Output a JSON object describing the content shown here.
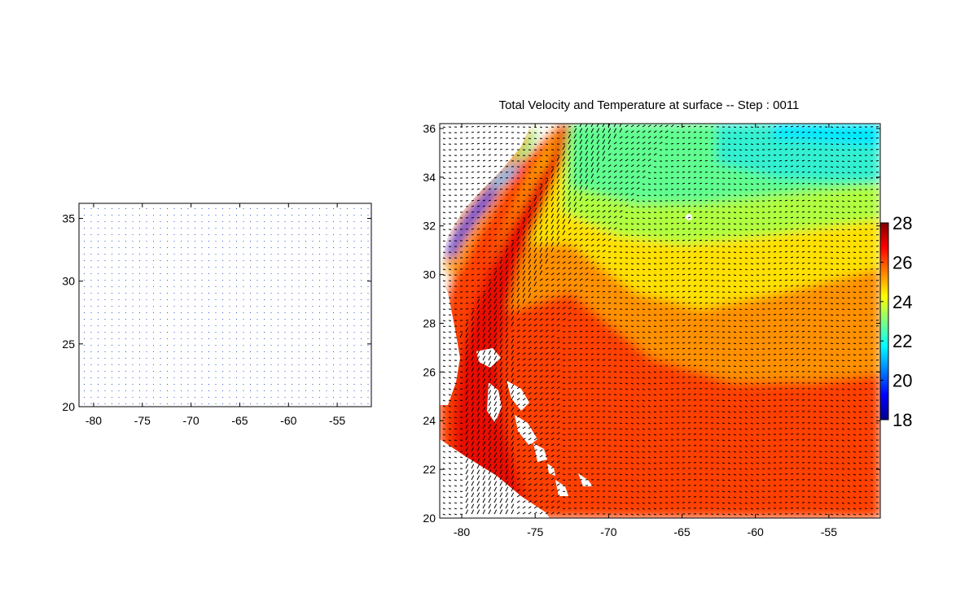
{
  "chart_data": [
    {
      "type": "scatter",
      "title": "",
      "xlabel": "",
      "ylabel": "",
      "xlim": [
        -81.5,
        -51.5
      ],
      "ylim": [
        20,
        36.2
      ],
      "xticks": [
        "-80",
        "-75",
        "-70",
        "-65",
        "-60",
        "-55"
      ],
      "yticks": [
        "20",
        "25",
        "30",
        "35"
      ],
      "grid": false,
      "point_color": "#3355cc",
      "description_marks": "regular grid of tiny dots"
    },
    {
      "type": "heatmap",
      "title": "Total Velocity and Temperature at surface -- Step : 0011",
      "xlabel": "",
      "ylabel": "",
      "xlim": [
        -81.5,
        -51.5
      ],
      "ylim": [
        20,
        36.2
      ],
      "xticks": [
        "-80",
        "-75",
        "-70",
        "-65",
        "-60",
        "-55"
      ],
      "yticks": [
        "20",
        "22",
        "24",
        "26",
        "28",
        "30",
        "32",
        "34",
        "36"
      ],
      "colorbar": {
        "min": 18,
        "max": 28,
        "ticks": [
          "18",
          "20",
          "22",
          "24",
          "26",
          "28"
        ],
        "colormap": "jet"
      },
      "overlay": "velocity vectors"
    }
  ]
}
